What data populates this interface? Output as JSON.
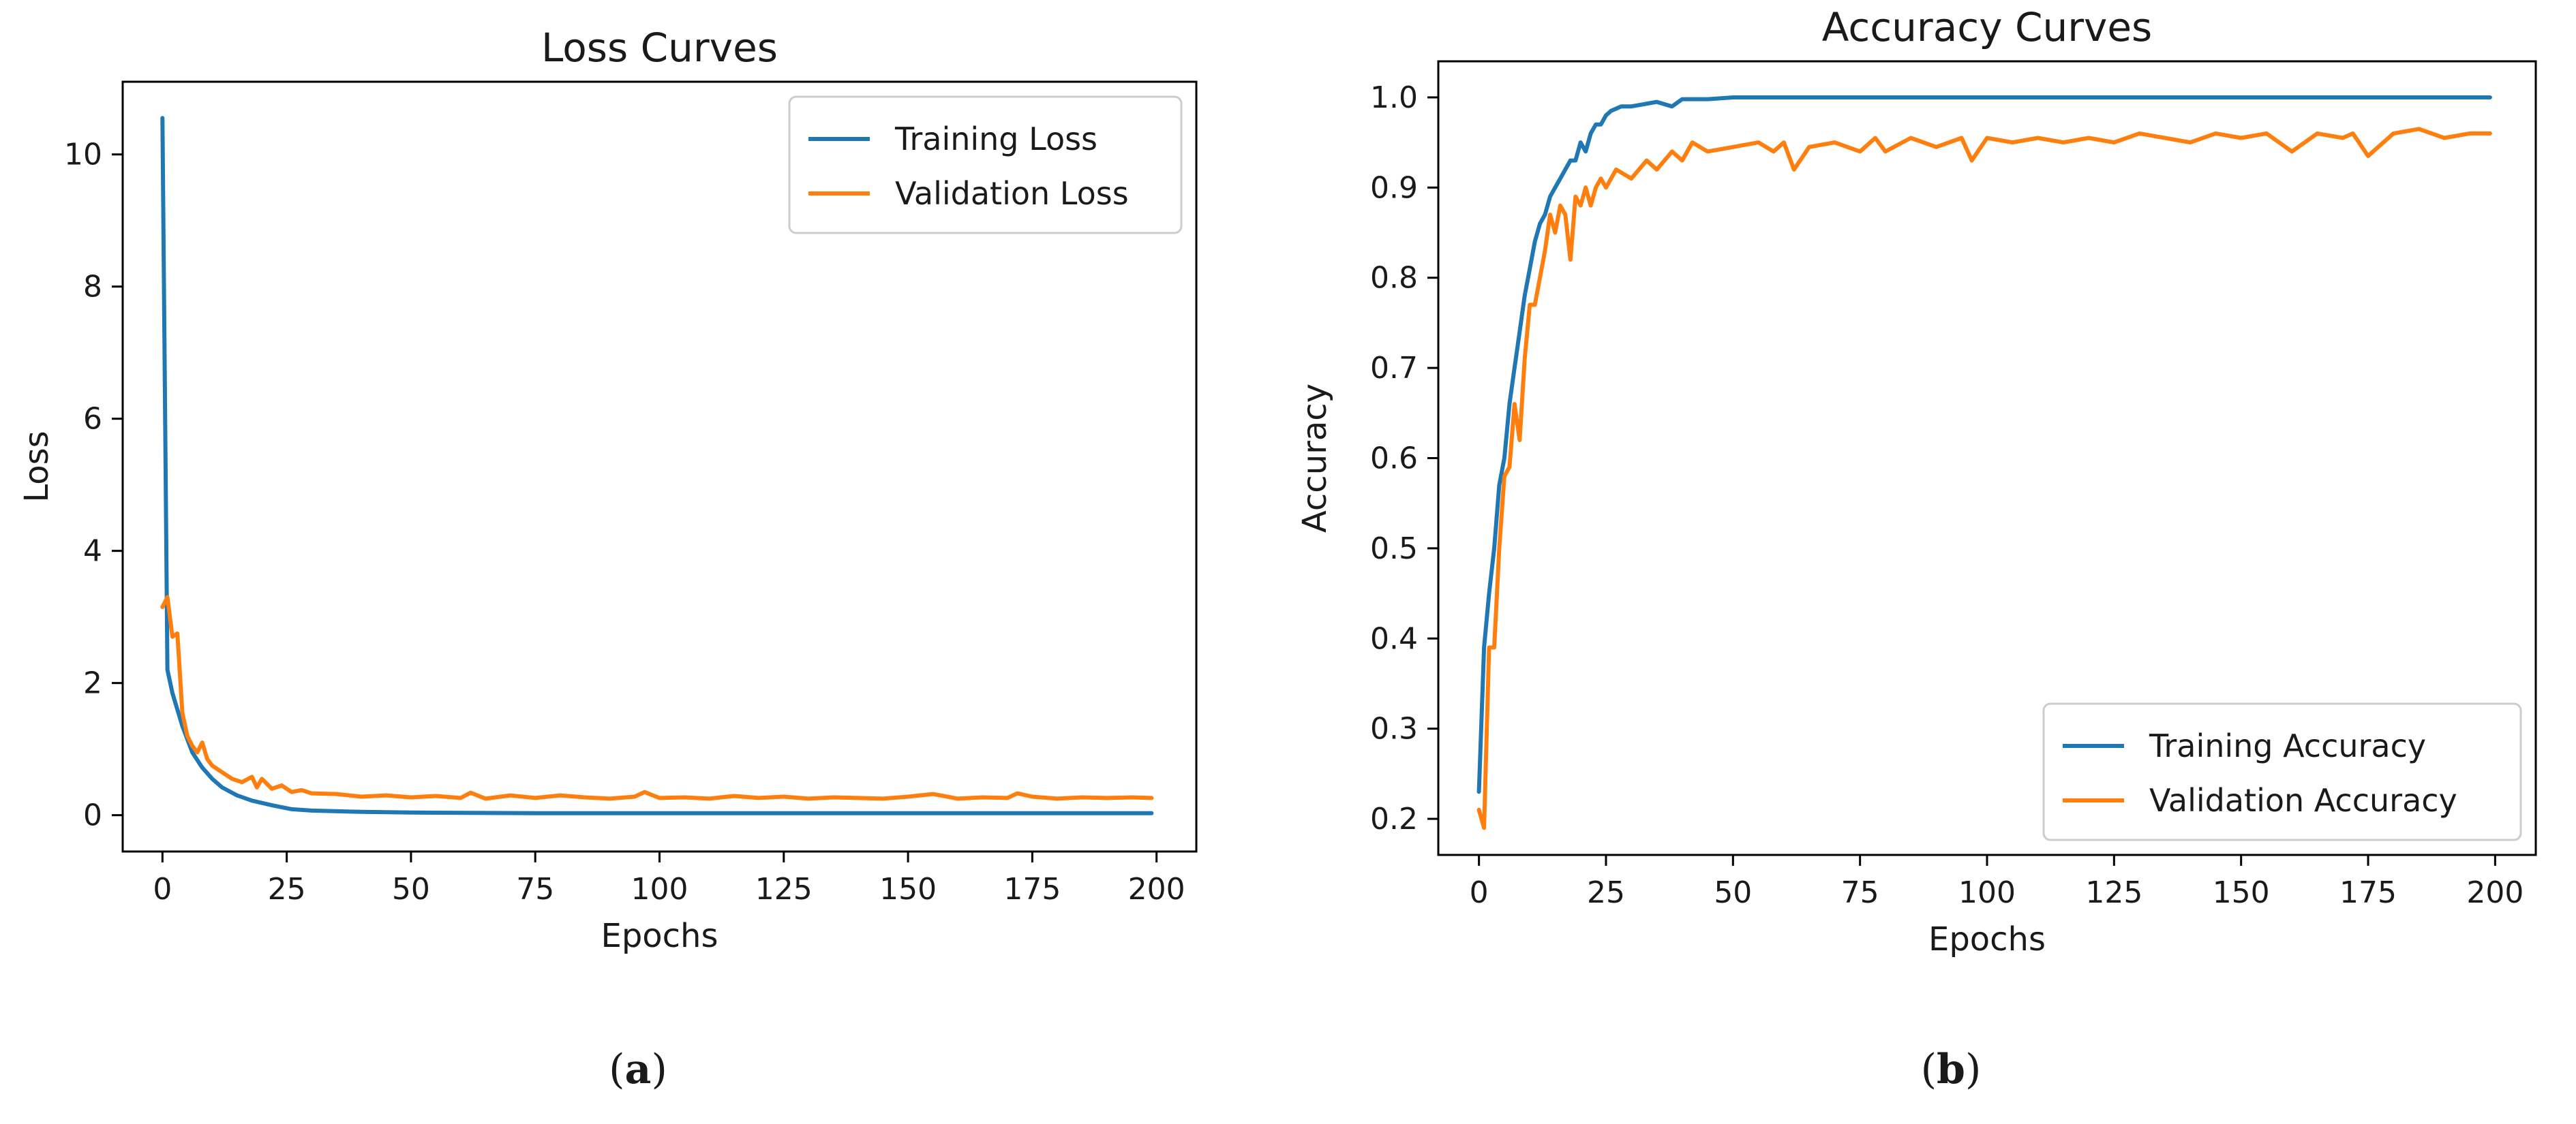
{
  "figure": {
    "panels": [
      {
        "label_open": "(",
        "label_letter": "a",
        "label_close": ")"
      },
      {
        "label_open": "(",
        "label_letter": "b",
        "label_close": ")"
      }
    ]
  },
  "colors": {
    "training": "#1f77b4",
    "validation": "#ff7f0e",
    "axis": "#000000",
    "legend_border": "#cccccc"
  },
  "chart_data": [
    {
      "type": "line",
      "title": "Loss Curves",
      "xlabel": "Epochs",
      "ylabel": "Loss",
      "xlim": [
        -8,
        208
      ],
      "ylim": [
        -0.55,
        11.1
      ],
      "xticks": [
        0,
        25,
        50,
        75,
        100,
        125,
        150,
        175,
        200
      ],
      "yticks": [
        0,
        2,
        4,
        6,
        8,
        10
      ],
      "legend_position": "top-right",
      "series": [
        {
          "name": "Training Loss",
          "color": "#1f77b4",
          "x": [
            0,
            1,
            2,
            3,
            4,
            5,
            6,
            8,
            10,
            12,
            15,
            18,
            22,
            26,
            30,
            40,
            50,
            75,
            100,
            125,
            150,
            175,
            199
          ],
          "y": [
            10.55,
            2.2,
            1.85,
            1.6,
            1.35,
            1.15,
            0.95,
            0.72,
            0.55,
            0.42,
            0.3,
            0.22,
            0.15,
            0.09,
            0.07,
            0.05,
            0.04,
            0.03,
            0.03,
            0.03,
            0.03,
            0.03,
            0.03
          ]
        },
        {
          "name": "Validation Loss",
          "color": "#ff7f0e",
          "x": [
            0,
            1,
            2,
            3,
            4,
            5,
            6,
            7,
            8,
            9,
            10,
            12,
            14,
            16,
            18,
            19,
            20,
            22,
            24,
            26,
            28,
            30,
            35,
            40,
            45,
            50,
            55,
            60,
            62,
            65,
            70,
            75,
            80,
            85,
            90,
            95,
            97,
            100,
            105,
            110,
            115,
            120,
            125,
            130,
            135,
            140,
            145,
            150,
            155,
            160,
            165,
            170,
            172,
            175,
            180,
            185,
            190,
            195,
            199
          ],
          "y": [
            3.15,
            3.3,
            2.7,
            2.75,
            1.55,
            1.2,
            1.05,
            0.95,
            1.1,
            0.85,
            0.75,
            0.65,
            0.55,
            0.5,
            0.58,
            0.42,
            0.55,
            0.4,
            0.45,
            0.35,
            0.38,
            0.33,
            0.32,
            0.28,
            0.3,
            0.27,
            0.29,
            0.26,
            0.34,
            0.25,
            0.3,
            0.26,
            0.3,
            0.27,
            0.25,
            0.28,
            0.35,
            0.26,
            0.27,
            0.25,
            0.29,
            0.26,
            0.28,
            0.25,
            0.27,
            0.26,
            0.25,
            0.28,
            0.32,
            0.25,
            0.27,
            0.26,
            0.33,
            0.28,
            0.25,
            0.27,
            0.26,
            0.27,
            0.26
          ]
        }
      ]
    },
    {
      "type": "line",
      "title": "Accuracy Curves",
      "xlabel": "Epochs",
      "ylabel": "Accuracy",
      "xlim": [
        -8,
        208
      ],
      "ylim": [
        0.16,
        1.04
      ],
      "xticks": [
        0,
        25,
        50,
        75,
        100,
        125,
        150,
        175,
        200
      ],
      "yticks": [
        0.2,
        0.3,
        0.4,
        0.5,
        0.6,
        0.7,
        0.8,
        0.9,
        1.0
      ],
      "legend_position": "bottom-right",
      "series": [
        {
          "name": "Training Accuracy",
          "color": "#1f77b4",
          "x": [
            0,
            1,
            2,
            3,
            4,
            5,
            6,
            7,
            8,
            9,
            10,
            11,
            12,
            13,
            14,
            15,
            16,
            17,
            18,
            19,
            20,
            21,
            22,
            23,
            24,
            25,
            26,
            28,
            30,
            35,
            38,
            40,
            45,
            50,
            60,
            75,
            100,
            125,
            150,
            175,
            199
          ],
          "y": [
            0.23,
            0.39,
            0.45,
            0.5,
            0.57,
            0.6,
            0.66,
            0.7,
            0.74,
            0.78,
            0.81,
            0.84,
            0.86,
            0.87,
            0.89,
            0.9,
            0.91,
            0.92,
            0.93,
            0.93,
            0.95,
            0.94,
            0.96,
            0.97,
            0.97,
            0.98,
            0.985,
            0.99,
            0.99,
            0.995,
            0.99,
            0.998,
            0.998,
            1.0,
            1.0,
            1.0,
            1.0,
            1.0,
            1.0,
            1.0,
            1.0
          ]
        },
        {
          "name": "Validation Accuracy",
          "color": "#ff7f0e",
          "x": [
            0,
            1,
            2,
            3,
            4,
            5,
            6,
            7,
            8,
            9,
            10,
            11,
            12,
            13,
            14,
            15,
            16,
            17,
            18,
            19,
            20,
            21,
            22,
            23,
            24,
            25,
            27,
            30,
            33,
            35,
            38,
            40,
            42,
            45,
            50,
            55,
            58,
            60,
            62,
            65,
            70,
            75,
            78,
            80,
            85,
            90,
            95,
            97,
            100,
            105,
            110,
            115,
            120,
            125,
            130,
            135,
            140,
            145,
            150,
            155,
            160,
            165,
            170,
            172,
            175,
            180,
            185,
            190,
            195,
            199
          ],
          "y": [
            0.21,
            0.19,
            0.39,
            0.39,
            0.5,
            0.58,
            0.59,
            0.66,
            0.62,
            0.71,
            0.77,
            0.77,
            0.8,
            0.83,
            0.87,
            0.85,
            0.88,
            0.87,
            0.82,
            0.89,
            0.88,
            0.9,
            0.88,
            0.9,
            0.91,
            0.9,
            0.92,
            0.91,
            0.93,
            0.92,
            0.94,
            0.93,
            0.95,
            0.94,
            0.945,
            0.95,
            0.94,
            0.95,
            0.92,
            0.945,
            0.95,
            0.94,
            0.955,
            0.94,
            0.955,
            0.945,
            0.955,
            0.93,
            0.955,
            0.95,
            0.955,
            0.95,
            0.955,
            0.95,
            0.96,
            0.955,
            0.95,
            0.96,
            0.955,
            0.96,
            0.94,
            0.96,
            0.955,
            0.96,
            0.935,
            0.96,
            0.965,
            0.955,
            0.96,
            0.96
          ]
        }
      ]
    }
  ]
}
